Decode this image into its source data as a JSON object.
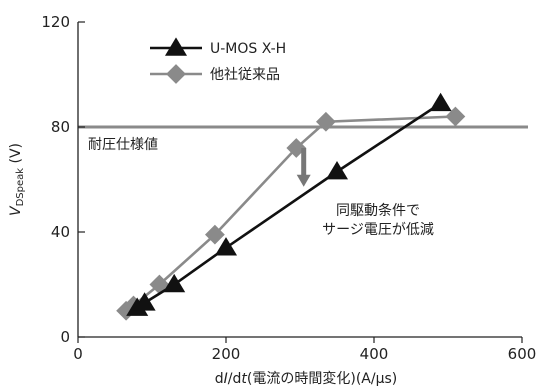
{
  "chart_data": {
    "type": "line",
    "xlabel_parts": [
      "d",
      "I",
      "/d",
      "t",
      "(電流の時間変化)(A/μs)"
    ],
    "ylabel_parts": [
      "V",
      "DSpeak",
      " (V)"
    ],
    "xlim": [
      0,
      600
    ],
    "ylim": [
      0,
      120
    ],
    "xticks": [
      0,
      200,
      400,
      600
    ],
    "yticks": [
      0,
      40,
      80,
      120
    ],
    "grid": false,
    "legend_placement": "top-left",
    "series": [
      {
        "name": "U-MOS X-H",
        "marker": "triangle",
        "color": "#111111",
        "x": [
          80,
          90,
          130,
          200,
          350,
          490
        ],
        "y": [
          11,
          13,
          20,
          34,
          63,
          89
        ]
      },
      {
        "name": "他社従来品",
        "marker": "diamond",
        "color": "#8a8a8a",
        "x": [
          65,
          75,
          110,
          185,
          295,
          335,
          510
        ],
        "y": [
          10,
          12,
          20,
          39,
          72,
          82,
          84
        ]
      }
    ],
    "reference_line": {
      "label": "耐圧仕様値",
      "y": 80,
      "color": "#8a8a8a"
    },
    "annotation": {
      "lines": [
        "同駆動条件で",
        "サージ電圧が低減"
      ],
      "arrow_x": 305,
      "arrow_from_y": 72,
      "arrow_to_y": 58,
      "arrow_color": "#777777"
    }
  }
}
